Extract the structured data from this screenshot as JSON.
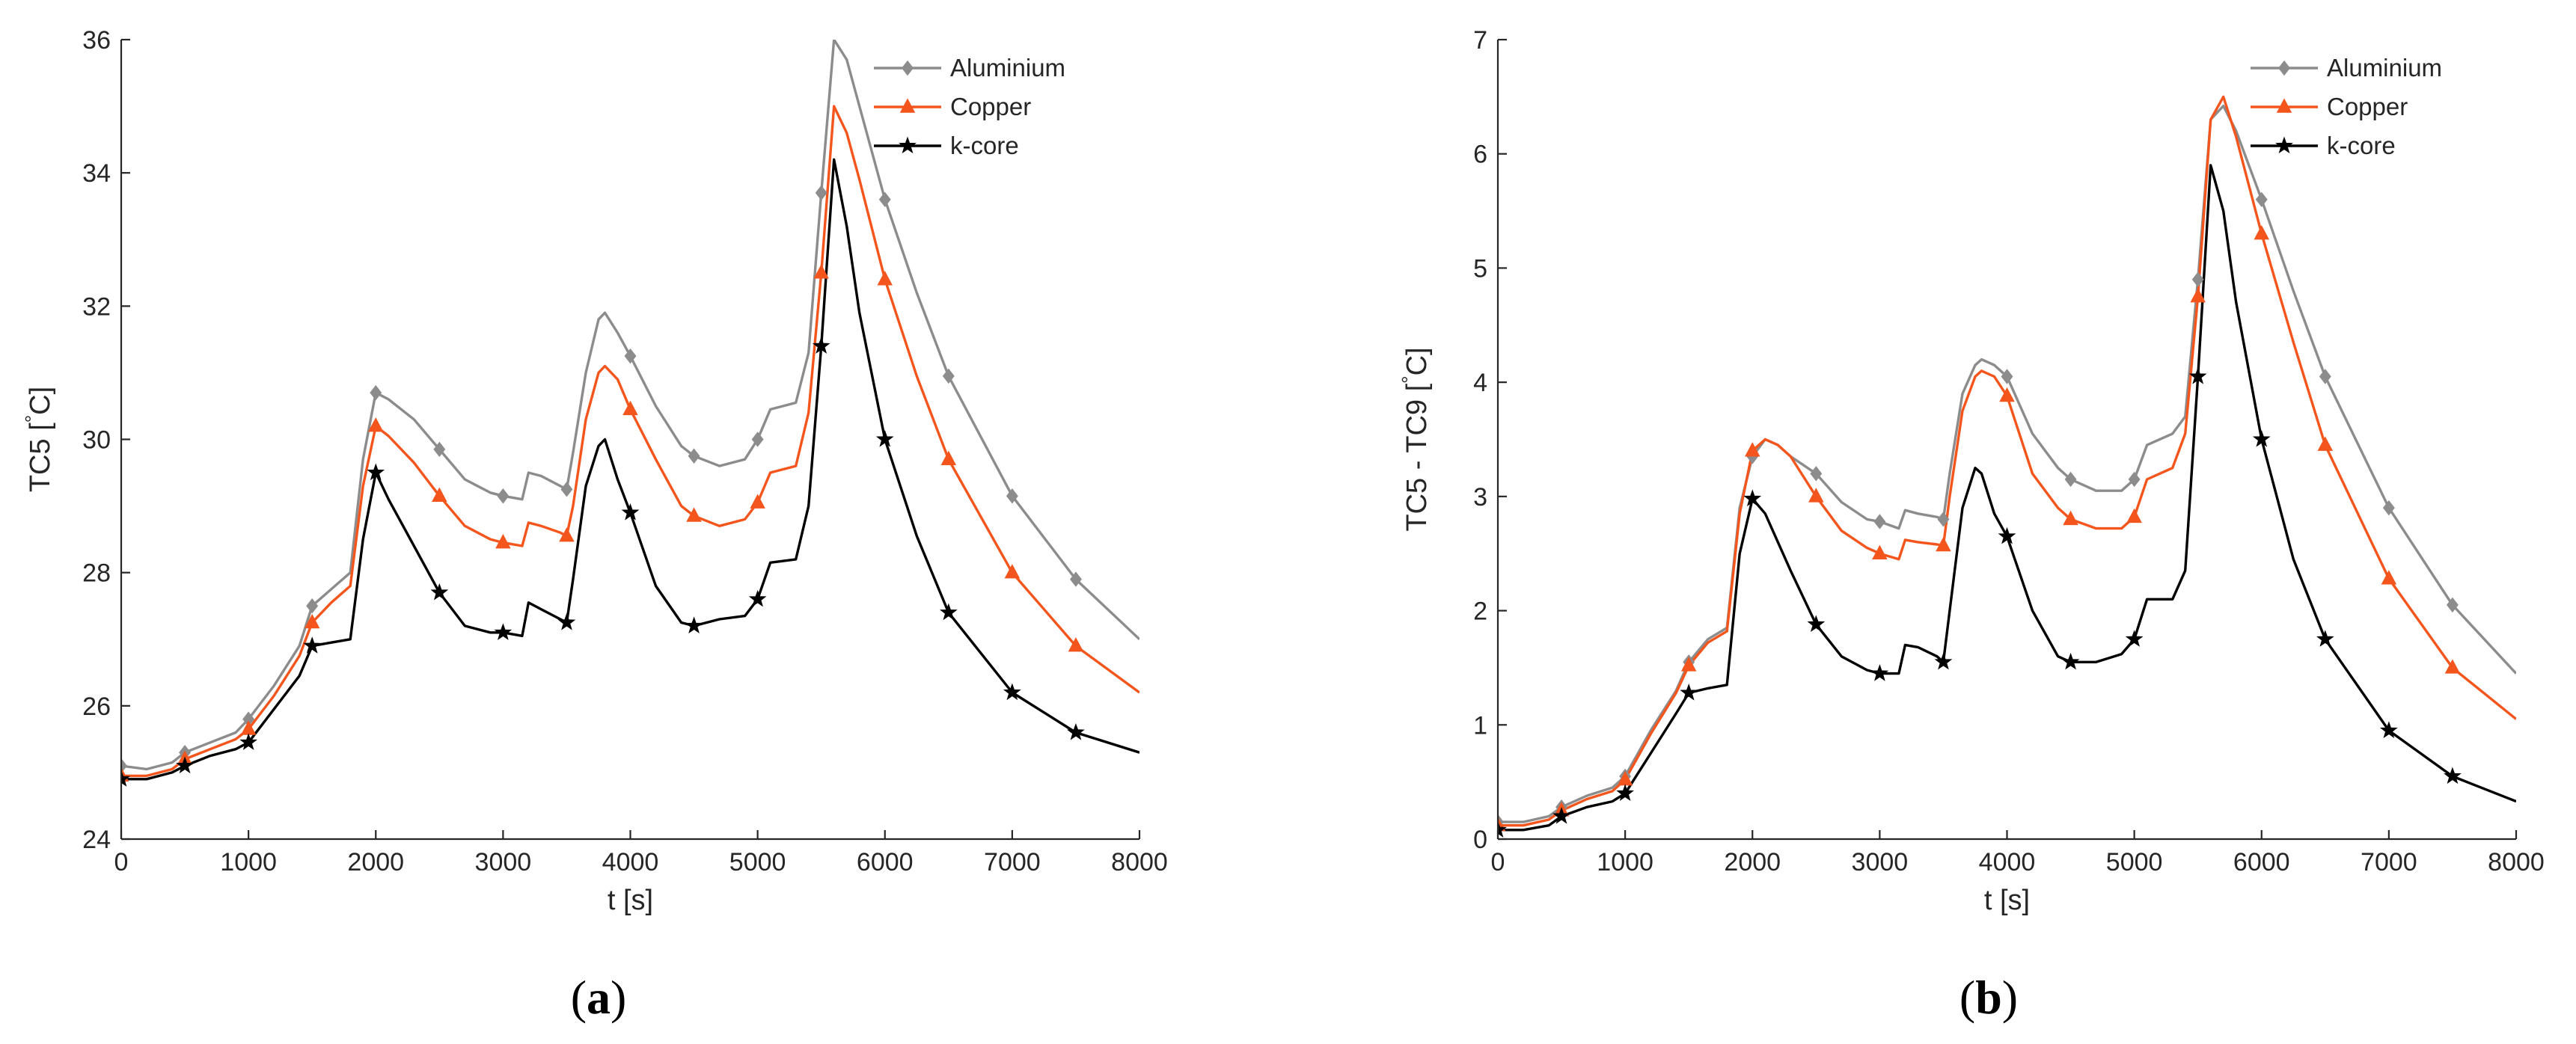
{
  "figure": {
    "panels": [
      {
        "label_open": "(",
        "label_letter": "a",
        "label_close": ")"
      },
      {
        "label_open": "(",
        "label_letter": "b",
        "label_close": ")"
      }
    ]
  },
  "chart_data": [
    {
      "type": "line",
      "xlabel": "t [s]",
      "ylabel": "TC5 [°C]",
      "xlim": [
        0,
        8000
      ],
      "ylim": [
        24,
        36
      ],
      "xticks": [
        0,
        1000,
        2000,
        3000,
        4000,
        5000,
        6000,
        7000,
        8000
      ],
      "yticks": [
        24,
        26,
        28,
        30,
        32,
        34,
        36
      ],
      "legend_position": "top-right",
      "series": [
        {
          "name": "Aluminium",
          "color": "#8c8c8c",
          "marker": "diamond",
          "x": [
            0,
            200,
            400,
            500,
            700,
            900,
            1000,
            1200,
            1400,
            1500,
            1650,
            1800,
            1900,
            2000,
            2100,
            2300,
            2500,
            2700,
            2900,
            3000,
            3150,
            3200,
            3300,
            3450,
            3500,
            3550,
            3650,
            3750,
            3800,
            3900,
            4000,
            4200,
            4400,
            4500,
            4700,
            4900,
            5000,
            5100,
            5300,
            5400,
            5500,
            5600,
            5700,
            5800,
            6000,
            6250,
            6500,
            7000,
            7500,
            8000
          ],
          "y": [
            25.1,
            25.05,
            25.15,
            25.3,
            25.45,
            25.6,
            25.8,
            26.3,
            26.9,
            27.5,
            27.75,
            28.0,
            29.7,
            30.7,
            30.6,
            30.3,
            29.85,
            29.4,
            29.2,
            29.15,
            29.1,
            29.5,
            29.45,
            29.3,
            29.25,
            29.8,
            31.0,
            31.8,
            31.9,
            31.6,
            31.25,
            30.5,
            29.9,
            29.75,
            29.6,
            29.7,
            30.0,
            30.45,
            30.55,
            31.3,
            33.7,
            36.0,
            35.7,
            35.0,
            33.6,
            32.2,
            30.95,
            29.15,
            27.9,
            27.0
          ],
          "markers_x": [
            0,
            500,
            1000,
            1500,
            2000,
            2500,
            3000,
            3500,
            4000,
            4500,
            5000,
            5500,
            6000,
            6500,
            7000,
            7500
          ]
        },
        {
          "name": "Copper",
          "color": "#f4551c",
          "marker": "triangle",
          "x": [
            0,
            200,
            400,
            500,
            700,
            900,
            1000,
            1200,
            1400,
            1500,
            1650,
            1800,
            1900,
            2000,
            2100,
            2300,
            2500,
            2700,
            2900,
            3000,
            3150,
            3200,
            3300,
            3450,
            3500,
            3550,
            3650,
            3750,
            3800,
            3900,
            4000,
            4200,
            4400,
            4500,
            4700,
            4900,
            5000,
            5100,
            5300,
            5400,
            5500,
            5600,
            5700,
            5800,
            6000,
            6250,
            6500,
            7000,
            7500,
            8000
          ],
          "y": [
            24.95,
            24.95,
            25.05,
            25.2,
            25.35,
            25.5,
            25.65,
            26.15,
            26.75,
            27.25,
            27.55,
            27.8,
            29.3,
            30.2,
            30.05,
            29.65,
            29.15,
            28.7,
            28.5,
            28.45,
            28.4,
            28.75,
            28.7,
            28.6,
            28.55,
            29.0,
            30.3,
            31.0,
            31.1,
            30.9,
            30.45,
            29.7,
            29.0,
            28.85,
            28.7,
            28.8,
            29.05,
            29.5,
            29.6,
            30.4,
            32.5,
            35.0,
            34.6,
            33.9,
            32.4,
            30.95,
            29.7,
            28.0,
            26.9,
            26.2
          ],
          "markers_x": [
            0,
            500,
            1000,
            1500,
            2000,
            2500,
            3000,
            3500,
            4000,
            4500,
            5000,
            5500,
            6000,
            6500,
            7000,
            7500
          ]
        },
        {
          "name": "k-core",
          "color": "#000000",
          "marker": "star",
          "x": [
            0,
            200,
            400,
            500,
            700,
            900,
            1000,
            1200,
            1400,
            1500,
            1650,
            1800,
            1900,
            2000,
            2100,
            2300,
            2500,
            2700,
            2900,
            3000,
            3150,
            3200,
            3300,
            3450,
            3500,
            3550,
            3650,
            3750,
            3800,
            3900,
            4000,
            4200,
            4400,
            4500,
            4700,
            4900,
            5000,
            5100,
            5300,
            5400,
            5500,
            5600,
            5700,
            5800,
            6000,
            6250,
            6500,
            7000,
            7500,
            8000
          ],
          "y": [
            24.9,
            24.9,
            25.0,
            25.1,
            25.25,
            25.35,
            25.45,
            25.95,
            26.45,
            26.9,
            26.95,
            27.0,
            28.5,
            29.5,
            29.1,
            28.4,
            27.7,
            27.2,
            27.1,
            27.1,
            27.05,
            27.55,
            27.45,
            27.3,
            27.25,
            27.9,
            29.3,
            29.9,
            30.0,
            29.4,
            28.9,
            27.8,
            27.25,
            27.2,
            27.3,
            27.35,
            27.6,
            28.15,
            28.2,
            29.0,
            31.4,
            34.2,
            33.2,
            31.9,
            30.0,
            28.55,
            27.4,
            26.2,
            25.6,
            25.3
          ],
          "markers_x": [
            0,
            500,
            1000,
            1500,
            2000,
            2500,
            3000,
            3500,
            4000,
            4500,
            5000,
            5500,
            6000,
            6500,
            7000,
            7500
          ]
        }
      ]
    },
    {
      "type": "line",
      "xlabel": "t [s]",
      "ylabel": "TC5 - TC9 [°C]",
      "xlim": [
        0,
        8000
      ],
      "ylim": [
        0,
        7
      ],
      "xticks": [
        0,
        1000,
        2000,
        3000,
        4000,
        5000,
        6000,
        7000,
        8000
      ],
      "yticks": [
        0,
        1,
        2,
        3,
        4,
        5,
        6,
        7
      ],
      "legend_position": "top-right",
      "series": [
        {
          "name": "Aluminium",
          "color": "#8c8c8c",
          "marker": "diamond",
          "x": [
            0,
            200,
            400,
            500,
            700,
            900,
            1000,
            1200,
            1400,
            1500,
            1650,
            1800,
            1900,
            2000,
            2100,
            2200,
            2300,
            2500,
            2700,
            2900,
            3000,
            3150,
            3200,
            3300,
            3450,
            3500,
            3550,
            3650,
            3750,
            3800,
            3900,
            4000,
            4200,
            4400,
            4500,
            4700,
            4900,
            5000,
            5100,
            5300,
            5400,
            5500,
            5600,
            5700,
            5800,
            6000,
            6250,
            6500,
            7000,
            7500,
            8000
          ],
          "y": [
            0.15,
            0.15,
            0.2,
            0.28,
            0.38,
            0.45,
            0.55,
            0.95,
            1.3,
            1.55,
            1.75,
            1.85,
            2.9,
            3.35,
            3.5,
            3.45,
            3.35,
            3.2,
            2.95,
            2.8,
            2.78,
            2.72,
            2.88,
            2.85,
            2.82,
            2.8,
            3.2,
            3.9,
            4.15,
            4.2,
            4.15,
            4.05,
            3.55,
            3.25,
            3.15,
            3.05,
            3.05,
            3.15,
            3.45,
            3.55,
            3.7,
            4.9,
            6.3,
            6.42,
            6.2,
            5.6,
            4.8,
            4.05,
            2.9,
            2.05,
            1.45
          ],
          "markers_x": [
            0,
            500,
            1000,
            1500,
            2000,
            2500,
            3000,
            3500,
            4000,
            4500,
            5000,
            5500,
            6000,
            6500,
            7000,
            7500
          ]
        },
        {
          "name": "Copper",
          "color": "#f4551c",
          "marker": "triangle",
          "x": [
            0,
            200,
            400,
            500,
            700,
            900,
            1000,
            1200,
            1400,
            1500,
            1650,
            1800,
            1900,
            2000,
            2100,
            2200,
            2300,
            2500,
            2700,
            2900,
            3000,
            3150,
            3200,
            3300,
            3450,
            3500,
            3550,
            3650,
            3750,
            3800,
            3900,
            4000,
            4200,
            4400,
            4500,
            4700,
            4900,
            5000,
            5100,
            5300,
            5400,
            5500,
            5600,
            5700,
            5800,
            6000,
            6250,
            6500,
            7000,
            7500,
            8000
          ],
          "y": [
            0.12,
            0.12,
            0.17,
            0.25,
            0.35,
            0.42,
            0.52,
            0.92,
            1.28,
            1.52,
            1.72,
            1.82,
            2.85,
            3.4,
            3.5,
            3.45,
            3.35,
            3.0,
            2.7,
            2.55,
            2.5,
            2.45,
            2.62,
            2.6,
            2.58,
            2.57,
            3.0,
            3.75,
            4.05,
            4.1,
            4.05,
            3.88,
            3.2,
            2.9,
            2.8,
            2.72,
            2.72,
            2.82,
            3.15,
            3.25,
            3.55,
            4.75,
            6.3,
            6.5,
            6.15,
            5.3,
            4.35,
            3.45,
            2.28,
            1.5,
            1.05
          ],
          "markers_x": [
            0,
            500,
            1000,
            1500,
            2000,
            2500,
            3000,
            3500,
            4000,
            4500,
            5000,
            5500,
            6000,
            6500,
            7000,
            7500
          ]
        },
        {
          "name": "k-core",
          "color": "#000000",
          "marker": "star",
          "x": [
            0,
            200,
            400,
            500,
            700,
            900,
            1000,
            1200,
            1400,
            1500,
            1650,
            1800,
            1900,
            2000,
            2100,
            2200,
            2300,
            2500,
            2700,
            2900,
            3000,
            3150,
            3200,
            3300,
            3450,
            3500,
            3550,
            3650,
            3750,
            3800,
            3900,
            4000,
            4200,
            4400,
            4500,
            4700,
            4900,
            5000,
            5100,
            5300,
            5400,
            5500,
            5600,
            5700,
            5800,
            6000,
            6250,
            6500,
            7000,
            7500,
            8000
          ],
          "y": [
            0.08,
            0.08,
            0.12,
            0.2,
            0.28,
            0.33,
            0.4,
            0.75,
            1.1,
            1.28,
            1.32,
            1.35,
            2.5,
            2.98,
            2.85,
            2.6,
            2.35,
            1.88,
            1.6,
            1.48,
            1.45,
            1.45,
            1.7,
            1.68,
            1.6,
            1.55,
            2.0,
            2.9,
            3.25,
            3.2,
            2.85,
            2.65,
            2.0,
            1.6,
            1.55,
            1.55,
            1.62,
            1.75,
            2.1,
            2.1,
            2.35,
            4.05,
            5.9,
            5.5,
            4.7,
            3.5,
            2.45,
            1.75,
            0.95,
            0.55,
            0.33
          ],
          "markers_x": [
            0,
            500,
            1000,
            1500,
            2000,
            2500,
            3000,
            3500,
            4000,
            4500,
            5000,
            5500,
            6000,
            6500,
            7000,
            7500
          ]
        }
      ]
    }
  ]
}
